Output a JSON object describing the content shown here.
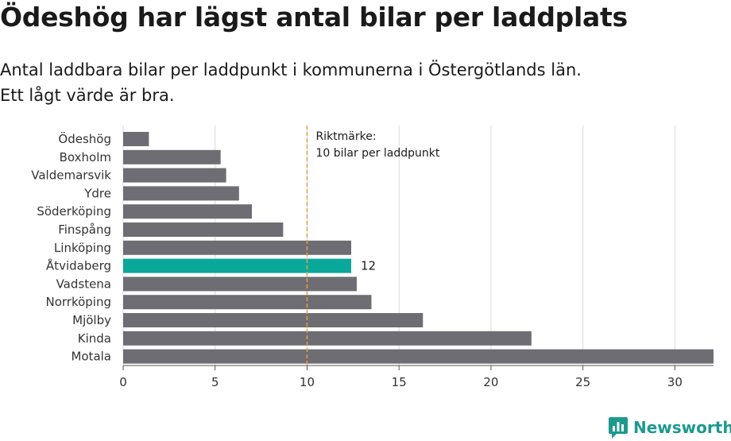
{
  "header": {
    "title": "Ödeshög har lägst antal bilar per laddplats",
    "subtitle_line1": "Antal laddbara bilar per laddpunkt i kommunerna i Östergötlands län.",
    "subtitle_line2": "Ett lågt värde är bra."
  },
  "chart_data": {
    "type": "bar",
    "orientation": "horizontal",
    "categories": [
      "Ödeshög",
      "Boxholm",
      "Valdemarsvik",
      "Ydre",
      "Söderköping",
      "Finspång",
      "Linköping",
      "Åtvidaberg",
      "Vadstena",
      "Norrköping",
      "Mjölby",
      "Kinda",
      "Motala"
    ],
    "values": [
      1.4,
      5.3,
      5.6,
      6.3,
      7.0,
      8.7,
      12.4,
      12.4,
      12.7,
      13.5,
      16.3,
      22.2,
      32.1
    ],
    "highlight_index": 7,
    "highlight_label": "12",
    "xlim": [
      0,
      32.1
    ],
    "xticks": [
      0,
      5,
      10,
      15,
      20,
      25,
      30
    ],
    "grid": true,
    "reference_line": {
      "value": 10,
      "label_line1": "Riktmärke:",
      "label_line2": "10 bilar per laddpunkt",
      "color": "#e0a43a"
    },
    "colors": {
      "bar": "#6e6d73",
      "highlight": "#0aa89a",
      "grid": "#d9d9d9"
    }
  },
  "branding": {
    "name": "Newsworthy",
    "color": "#1b9a8e"
  }
}
